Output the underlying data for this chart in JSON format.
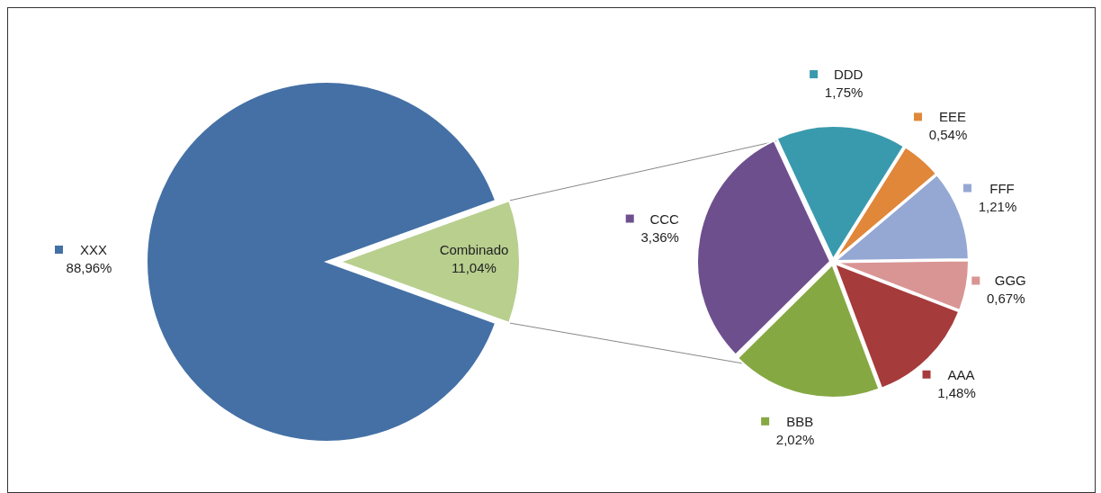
{
  "chart_data": [
    {
      "type": "pie",
      "categories": [
        "XXX",
        "Combinado"
      ],
      "values": [
        88.96,
        11.04
      ],
      "colors": [
        "#4470a5",
        "#b8cf8e"
      ],
      "value_labels": [
        "88,96%",
        "11,04%"
      ],
      "legend": "left"
    },
    {
      "type": "pie",
      "categories": [
        "DDD",
        "EEE",
        "FFF",
        "GGG",
        "AAA",
        "BBB",
        "CCC"
      ],
      "values": [
        1.75,
        0.54,
        1.21,
        0.67,
        1.48,
        2.02,
        3.36
      ],
      "colors": [
        "#3a9aad",
        "#e0873a",
        "#95a8d4",
        "#d99594",
        "#a63b3b",
        "#86a843",
        "#6e4f8e"
      ],
      "value_labels": [
        "1,75%",
        "0,54%",
        "1,21%",
        "0,67%",
        "1,48%",
        "2,02%",
        "3,36%"
      ],
      "legend": "right"
    }
  ]
}
